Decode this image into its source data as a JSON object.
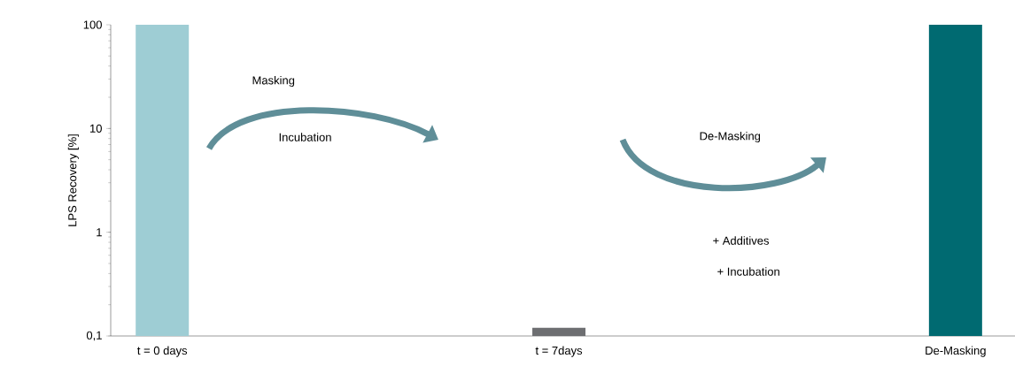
{
  "chart_data": {
    "type": "bar",
    "ylabel": "LPS Recovery [%]",
    "categories": [
      "t = 0 days",
      "t = 7days",
      "De-Masking"
    ],
    "values": [
      100,
      0.12,
      100
    ],
    "colors": [
      "#9ecdd4",
      "#6d6e71",
      "#006a71"
    ],
    "log": "y",
    "ylim": [
      0.1,
      100
    ],
    "yticks": [
      {
        "value": 0.1,
        "label": "0,1"
      },
      1,
      10,
      100
    ],
    "annotations": [
      "Masking",
      "Incubation",
      "De-Masking",
      "+ Additives",
      "+ Incubation"
    ]
  }
}
